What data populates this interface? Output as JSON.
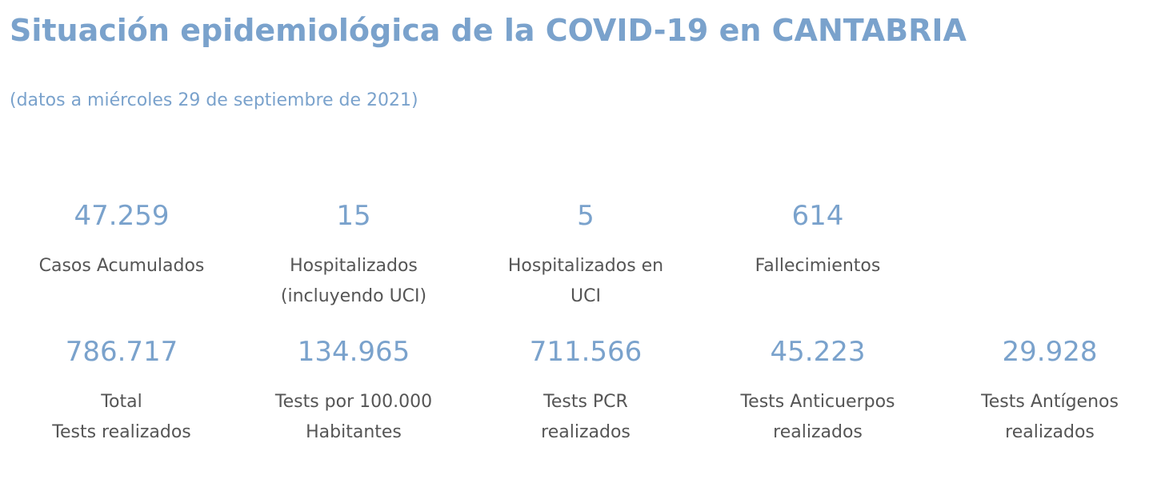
{
  "page": {
    "title": "Situación epidemiológica de la COVID-19 en CANTABRIA",
    "subtitle": "(datos a miércoles 29 de septiembre de 2021)"
  },
  "row1": [
    {
      "value": "47.259",
      "label_line1": "Casos Acumulados",
      "label_line2": ""
    },
    {
      "value": "15",
      "label_line1": "Hospitalizados",
      "label_line2": "(incluyendo UCI)"
    },
    {
      "value": "5",
      "label_line1": "Hospitalizados en",
      "label_line2": "UCI"
    },
    {
      "value": "614",
      "label_line1": "Fallecimientos",
      "label_line2": ""
    }
  ],
  "row2": [
    {
      "value": "786.717",
      "label_line1": "Total",
      "label_line2": "Tests realizados"
    },
    {
      "value": "134.965",
      "label_line1": "Tests por 100.000",
      "label_line2": "Habitantes"
    },
    {
      "value": "711.566",
      "label_line1": "Tests PCR",
      "label_line2": "realizados"
    },
    {
      "value": "45.223",
      "label_line1": "Tests Anticuerpos",
      "label_line2": "realizados"
    },
    {
      "value": "29.928",
      "label_line1": "Tests Antígenos",
      "label_line2": "realizados"
    }
  ]
}
